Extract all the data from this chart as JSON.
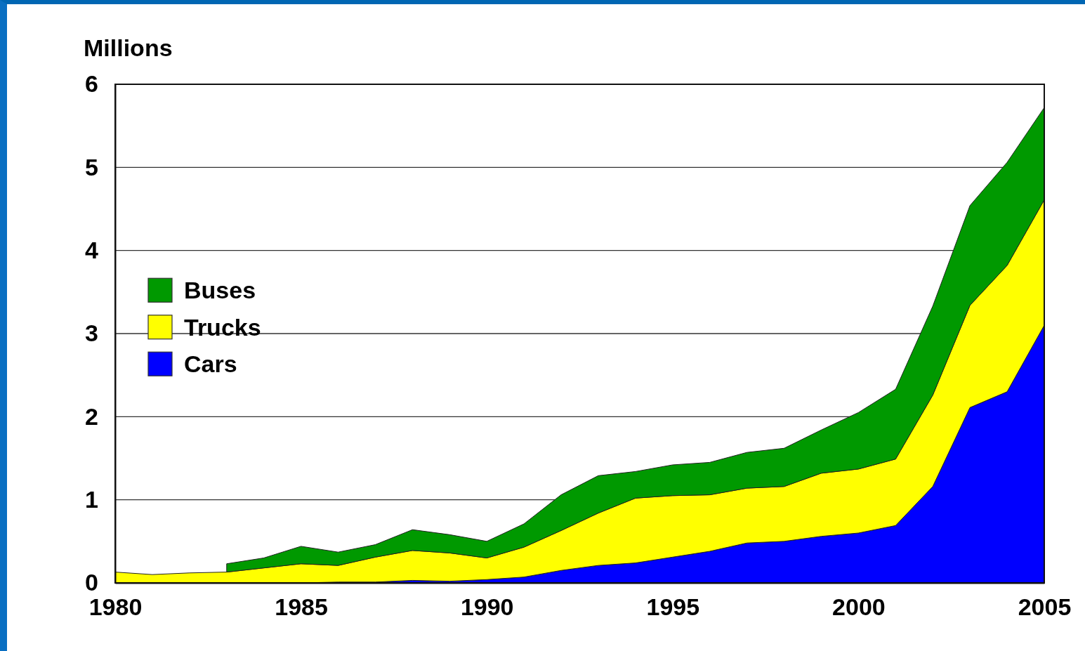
{
  "chart_data": {
    "type": "area",
    "stacked": true,
    "ylabel": "Millions",
    "x": [
      1980,
      1981,
      1982,
      1983,
      1984,
      1985,
      1986,
      1987,
      1988,
      1989,
      1990,
      1991,
      1992,
      1993,
      1994,
      1995,
      1996,
      1997,
      1998,
      1999,
      2000,
      2001,
      2002,
      2003,
      2004,
      2005
    ],
    "series": [
      {
        "name": "Cars",
        "color": "#0000ff",
        "values": [
          0,
          0,
          0,
          0,
          0,
          0,
          0.01,
          0.01,
          0.03,
          0.02,
          0.04,
          0.07,
          0.15,
          0.21,
          0.24,
          0.31,
          0.38,
          0.48,
          0.5,
          0.56,
          0.6,
          0.69,
          1.16,
          2.11,
          2.3,
          3.1
        ]
      },
      {
        "name": "Trucks",
        "color": "#ffff00",
        "values": [
          0.13,
          0.1,
          0.12,
          0.13,
          0.18,
          0.23,
          0.2,
          0.3,
          0.36,
          0.34,
          0.26,
          0.36,
          0.48,
          0.63,
          0.78,
          0.74,
          0.68,
          0.66,
          0.66,
          0.76,
          0.77,
          0.8,
          1.1,
          1.23,
          1.52,
          1.51
        ]
      },
      {
        "name": "Buses",
        "color": "#009900",
        "values": [
          null,
          null,
          null,
          0.1,
          0.12,
          0.21,
          0.16,
          0.15,
          0.25,
          0.22,
          0.2,
          0.28,
          0.43,
          0.45,
          0.32,
          0.37,
          0.39,
          0.43,
          0.46,
          0.52,
          0.68,
          0.84,
          1.07,
          1.2,
          1.24,
          1.11
        ]
      }
    ],
    "xlim": [
      1980,
      2005
    ],
    "xticks": [
      1980,
      1985,
      1990,
      1995,
      2000,
      2005
    ],
    "ylim": [
      0,
      6
    ],
    "yticks": [
      0,
      1,
      2,
      3,
      4,
      5,
      6
    ],
    "grid": "y",
    "legend": "left"
  }
}
